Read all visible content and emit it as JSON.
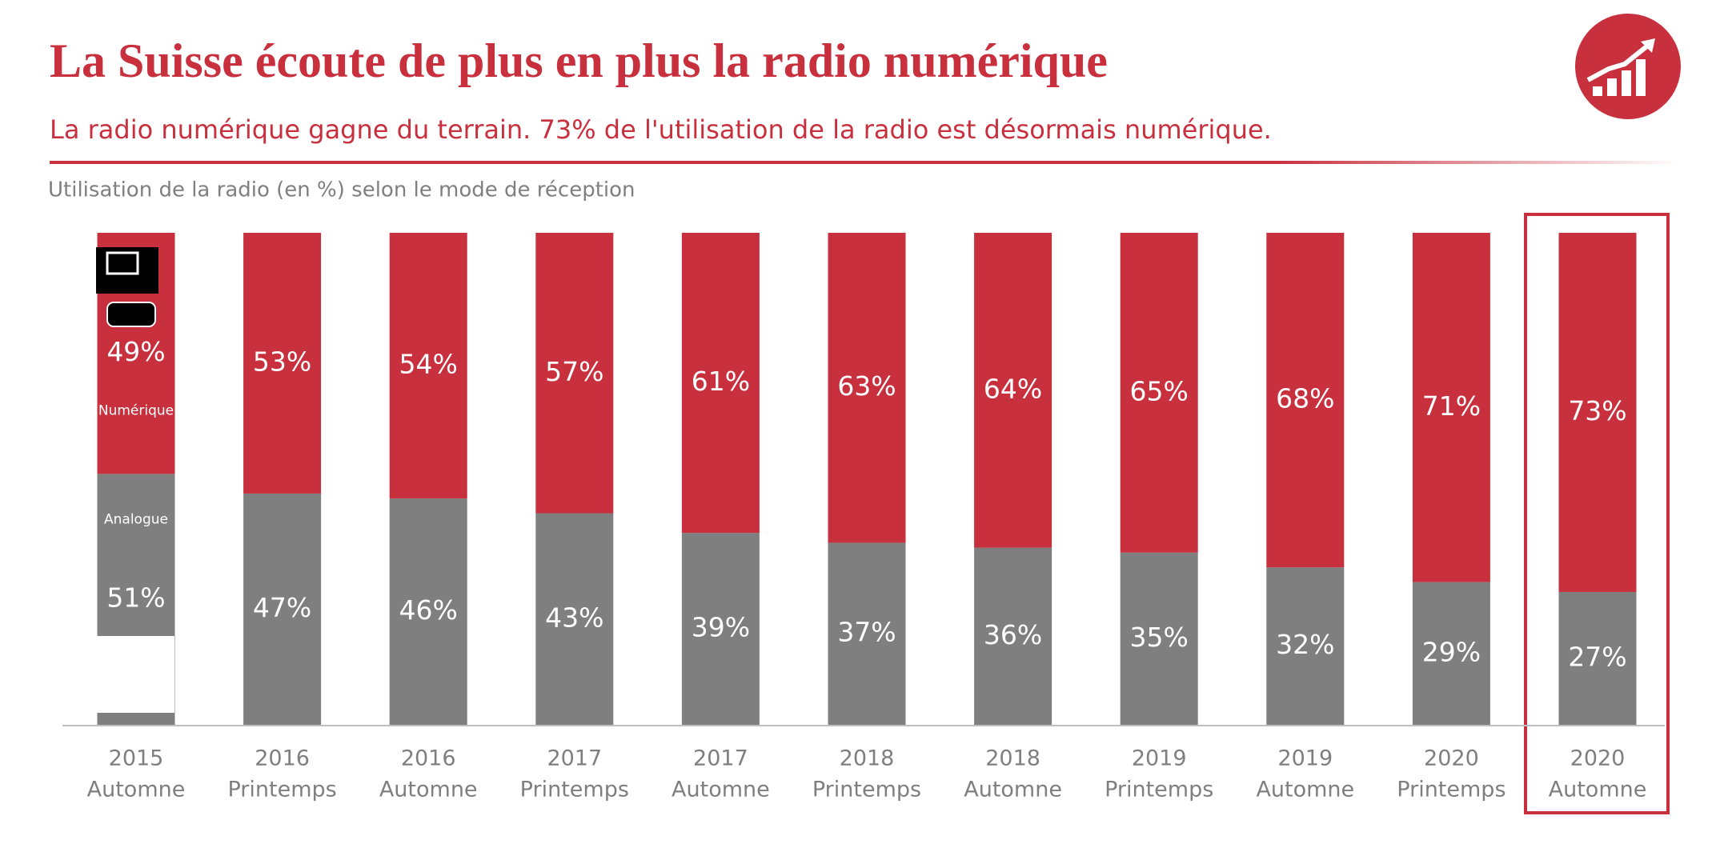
{
  "chart_data": {
    "type": "stacked_bar",
    "title": "La Suisse écoute de plus en plus la radio numérique",
    "subtitle": "La radio numérique gagne du terrain. 73% de l'utilisation de la radio est désormais numérique.",
    "y_label": "Utilisation de la radio (en %) selon le mode de réception",
    "categories": [
      [
        "2015",
        "Automne"
      ],
      [
        "2016",
        "Printemps"
      ],
      [
        "2016",
        "Automne"
      ],
      [
        "2017",
        "Printemps"
      ],
      [
        "2017",
        "Automne"
      ],
      [
        "2018",
        "Printemps"
      ],
      [
        "2018",
        "Automne"
      ],
      [
        "2019",
        "Printemps"
      ],
      [
        "2019",
        "Automne"
      ],
      [
        "2020",
        "Printemps"
      ],
      [
        "2020",
        "Automne"
      ]
    ],
    "ylim": [
      0,
      100
    ],
    "series": [
      {
        "name": "Analogue",
        "color": "#7f7f7f",
        "values": [
          51,
          47,
          46,
          43,
          39,
          37,
          36,
          35,
          32,
          29,
          27
        ],
        "value_labels": [
          "51%",
          "47%",
          "46%",
          "43%",
          "39%",
          "37%",
          "36%",
          "35%",
          "32%",
          "29%",
          "27%"
        ]
      },
      {
        "name": "Numérique",
        "color": "#c8303e",
        "values": [
          49,
          53,
          54,
          57,
          61,
          63,
          64,
          65,
          68,
          71,
          73
        ],
        "value_labels": [
          "49%",
          "53%",
          "54%",
          "57%",
          "61%",
          "63%",
          "64%",
          "65%",
          "68%",
          "71%",
          "73%"
        ]
      }
    ]
  }
}
